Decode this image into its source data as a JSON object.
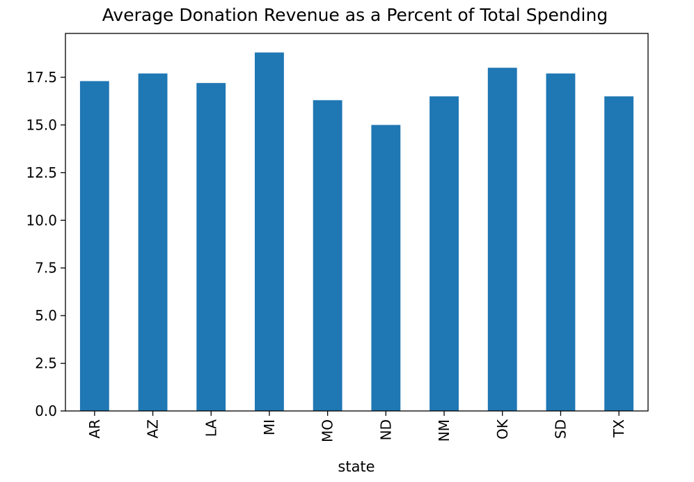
{
  "chart_data": {
    "type": "bar",
    "title": "Average Donation Revenue as a Percent of Total Spending",
    "xlabel": "state",
    "ylabel": "",
    "categories": [
      "AR",
      "AZ",
      "LA",
      "MI",
      "MO",
      "ND",
      "NM",
      "OK",
      "SD",
      "TX"
    ],
    "values": [
      17.3,
      17.7,
      17.2,
      18.8,
      16.3,
      15.0,
      16.5,
      18.0,
      17.7,
      16.5
    ],
    "ylim": [
      0,
      19.8
    ],
    "yticks": [
      0.0,
      2.5,
      5.0,
      7.5,
      10.0,
      12.5,
      15.0,
      17.5
    ],
    "ytick_labels": [
      "0.0",
      "2.5",
      "5.0",
      "7.5",
      "10.0",
      "12.5",
      "15.0",
      "17.5"
    ],
    "bar_color": "#1f77b4",
    "grid": false,
    "legend": null
  }
}
